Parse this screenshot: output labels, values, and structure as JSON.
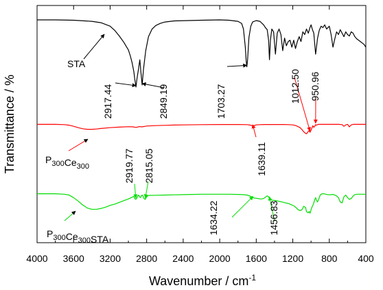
{
  "chart_data": {
    "type": "line",
    "xlabel": "Wavenumber / cm",
    "xlabel_sup": "-1",
    "ylabel": "Transmittance / %",
    "xlim": [
      4000,
      400
    ],
    "x_reversed": true,
    "y_ticks_labeled": false,
    "x_ticks": [
      4000,
      3600,
      3200,
      2800,
      2400,
      2000,
      1600,
      1200,
      800,
      400
    ],
    "series": [
      {
        "name": "STA",
        "name_parts": [
          {
            "t": "STA"
          }
        ],
        "color": "#000000",
        "offset": 0,
        "x": [
          4000,
          3800,
          3600,
          3400,
          3300,
          3200,
          3150,
          3100,
          3050,
          3000,
          2980,
          2960,
          2940,
          2930,
          2917,
          2905,
          2890,
          2875,
          2860,
          2849,
          2835,
          2810,
          2780,
          2740,
          2700,
          2650,
          2600,
          2500,
          2200,
          2000,
          1900,
          1800,
          1760,
          1740,
          1720,
          1710,
          1703,
          1695,
          1680,
          1660,
          1640,
          1600,
          1560,
          1520,
          1500,
          1480,
          1465,
          1455,
          1445,
          1430,
          1410,
          1390,
          1370,
          1350,
          1330,
          1310,
          1290,
          1270,
          1250,
          1230,
          1210,
          1190,
          1170,
          1150,
          1130,
          1110,
          1090,
          1070,
          1050,
          1030,
          1012,
          1000,
          985,
          970,
          960,
          950,
          940,
          930,
          910,
          890,
          870,
          850,
          830,
          800,
          780,
          760,
          740,
          720,
          700,
          680,
          660,
          640,
          620,
          600,
          580,
          560,
          540,
          520,
          500,
          480,
          460,
          440,
          420,
          400
        ],
        "y": [
          99,
          99,
          98.5,
          97,
          95,
          90,
          84,
          76,
          67,
          56,
          48,
          38,
          25,
          14,
          3,
          16,
          28,
          42,
          20,
          6,
          28,
          55,
          75,
          86,
          91,
          94,
          96,
          97.5,
          98.5,
          99,
          98.5,
          97,
          94,
          86,
          60,
          40,
          32,
          42,
          74,
          90,
          96,
          98,
          97,
          92,
          88,
          85,
          70,
          42,
          70,
          86,
          82,
          50,
          80,
          86,
          78,
          55,
          73,
          62,
          68,
          70,
          60,
          70,
          58,
          68,
          75,
          68,
          82,
          78,
          86,
          80,
          88,
          92,
          85,
          80,
          65,
          50,
          60,
          72,
          84,
          90,
          88,
          92,
          86,
          90,
          78,
          60,
          72,
          82,
          78,
          85,
          80,
          75,
          82,
          78,
          76,
          82,
          80,
          75,
          72,
          70,
          68,
          66,
          64,
          60
        ]
      },
      {
        "name": "P300Ce300",
        "name_parts": [
          {
            "t": "P"
          },
          {
            "t": "300",
            "sub": true
          },
          {
            "t": "Ce"
          },
          {
            "t": "300",
            "sub": true
          }
        ],
        "color": "#ff0000",
        "offset": -149,
        "x": [
          4000,
          3800,
          3700,
          3650,
          3600,
          3550,
          3500,
          3450,
          3400,
          3350,
          3300,
          3200,
          3100,
          3000,
          2950,
          2920,
          2900,
          2880,
          2850,
          2815,
          2800,
          2700,
          2600,
          2500,
          2400,
          2200,
          2000,
          1900,
          1800,
          1700,
          1660,
          1639,
          1620,
          1600,
          1560,
          1500,
          1450,
          1400,
          1300,
          1250,
          1200,
          1170,
          1150,
          1120,
          1100,
          1080,
          1060,
          1050,
          1040,
          1030,
          1020,
          1012,
          1000,
          990,
          980,
          970,
          960,
          950,
          940,
          930,
          920,
          900,
          880,
          860,
          800,
          700,
          660,
          640,
          620,
          600,
          580,
          560,
          540,
          520,
          500,
          480,
          460,
          440,
          420,
          400
        ],
        "y": [
          99,
          99,
          98,
          96,
          92,
          87,
          83,
          81,
          81,
          82,
          84,
          87,
          89,
          90.5,
          90,
          88,
          89,
          91,
          90,
          92,
          93,
          94.5,
          95.5,
          96.5,
          97,
          98,
          98.5,
          98.5,
          98.5,
          98,
          96,
          93,
          95,
          97,
          98,
          98.5,
          98.5,
          98.5,
          98.5,
          98,
          97,
          95,
          92,
          87,
          80,
          72,
          66,
          65,
          68,
          74,
          76,
          70,
          78,
          86,
          94,
          88,
          92,
          98,
          96,
          98,
          99,
          99,
          99,
          99,
          99,
          99,
          98,
          92,
          97,
          99,
          90,
          97,
          99,
          99,
          99,
          99,
          99,
          99,
          99,
          99
        ]
      },
      {
        "name": "P300Ce300STA",
        "name_parts": [
          {
            "t": "P"
          },
          {
            "t": "300",
            "sub": true
          },
          {
            "t": "Ce"
          },
          {
            "t": "300",
            "sub": true
          },
          {
            "t": "STA"
          }
        ],
        "color": "#00dd00",
        "offset": -250,
        "x": [
          4000,
          3800,
          3700,
          3650,
          3600,
          3550,
          3500,
          3450,
          3400,
          3350,
          3300,
          3250,
          3200,
          3150,
          3100,
          3050,
          3000,
          2960,
          2940,
          2930,
          2919,
          2910,
          2900,
          2890,
          2880,
          2870,
          2860,
          2850,
          2840,
          2830,
          2815,
          2800,
          2780,
          2700,
          2600,
          2500,
          2400,
          2300,
          2200,
          2100,
          2000,
          1900,
          1800,
          1750,
          1700,
          1660,
          1634,
          1620,
          1600,
          1580,
          1560,
          1540,
          1520,
          1500,
          1480,
          1470,
          1456,
          1440,
          1420,
          1400,
          1380,
          1360,
          1340,
          1320,
          1300,
          1280,
          1260,
          1240,
          1220,
          1200,
          1180,
          1160,
          1140,
          1120,
          1100,
          1080,
          1060,
          1050,
          1040,
          1030,
          1020,
          1010,
          1000,
          990,
          980,
          970,
          960,
          950,
          940,
          930,
          920,
          900,
          880,
          860,
          840,
          820,
          800,
          780,
          760,
          740,
          720,
          700,
          680,
          660,
          640,
          620,
          600,
          580,
          560,
          540,
          520,
          500,
          480,
          460,
          440,
          420,
          400
        ],
        "y": [
          99,
          99,
          98,
          96,
          90,
          82,
          73,
          66,
          63,
          63,
          65,
          68,
          72,
          75,
          79,
          83,
          87,
          91,
          93,
          88,
          86,
          88,
          93,
          96,
          93,
          90,
          93,
          96,
          94,
          88,
          86,
          92,
          95,
          95.5,
          96,
          96.5,
          97,
          97.5,
          98,
          98,
          98,
          98,
          97.5,
          97,
          96,
          93,
          90,
          89,
          88.5,
          88,
          87,
          87,
          88,
          91,
          94,
          93,
          89,
          85,
          84,
          83.5,
          83,
          82,
          81,
          80,
          79,
          78,
          77,
          76,
          74,
          72,
          70,
          66,
          62,
          60,
          62,
          70,
          67,
          58,
          56,
          55,
          58,
          54,
          62,
          68,
          72,
          78,
          85,
          90,
          84,
          80,
          84,
          96,
          99,
          99,
          98,
          97,
          96.5,
          97,
          97.5,
          96,
          94,
          90,
          80,
          78,
          92,
          96,
          90,
          86,
          88,
          94,
          97,
          98,
          98,
          98,
          98,
          98,
          98
        ]
      }
    ],
    "annotations": [
      {
        "text": "2917.44",
        "color": "#000000",
        "rot": -90
      },
      {
        "text": "2849.19",
        "color": "#000000",
        "rot": -90
      },
      {
        "text": "1703.27",
        "color": "#000000",
        "rot": -90
      },
      {
        "text": "1012.50",
        "color": "#000000",
        "rot": -90
      },
      {
        "text": "950.96",
        "color": "#000000",
        "rot": -90
      },
      {
        "text": "1639.11",
        "color": "#000000",
        "rot": -90
      },
      {
        "text": "2919.77",
        "color": "#000000",
        "rot": -90
      },
      {
        "text": "2815.05",
        "color": "#000000",
        "rot": -90
      },
      {
        "text": "1634.22",
        "color": "#000000",
        "rot": -90
      },
      {
        "text": "1456.83",
        "color": "#000000",
        "rot": -90
      }
    ],
    "arrows": [
      {
        "series": 0,
        "x": 2917,
        "label_index": 0,
        "color": "#000000"
      },
      {
        "series": 0,
        "x": 2849,
        "label_index": 1,
        "color": "#000000"
      },
      {
        "series": 0,
        "x": 1703,
        "label_index": 2,
        "color": "#000000"
      },
      {
        "series": 1,
        "x": 1012,
        "label_index": 3,
        "color": "#ff0000"
      },
      {
        "series": 1,
        "x": 950,
        "label_index": 4,
        "color": "#ff0000"
      },
      {
        "series": 1,
        "x": 1639,
        "label_index": 5,
        "color": "#ff0000"
      },
      {
        "series": 2,
        "x": 2919,
        "label_index": 6,
        "color": "#00dd00"
      },
      {
        "series": 2,
        "x": 2815,
        "label_index": 7,
        "color": "#00dd00"
      },
      {
        "series": 2,
        "x": 1634,
        "label_index": 8,
        "color": "#00dd00"
      },
      {
        "series": 2,
        "x": 1456,
        "label_index": 9,
        "color": "#00dd00"
      }
    ]
  }
}
